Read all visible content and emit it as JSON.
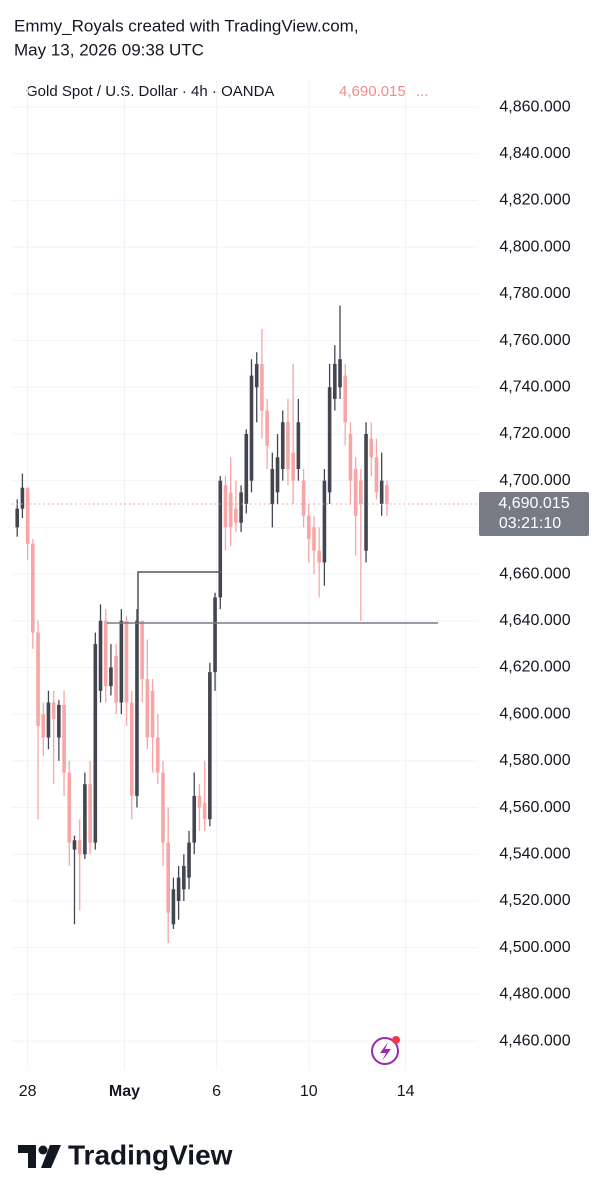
{
  "attribution": "Emmy_Royals created with TradingView.com,",
  "timestamp": "May 13, 2026 09:38 UTC",
  "brand": "TradingView",
  "chart_data": {
    "type": "candlestick",
    "title": "Gold Spot / U.S. Dollar · 4h · OANDA",
    "last_price": {
      "value": 4690.015,
      "label": "4,690.015"
    },
    "countdown": "03:21:10",
    "up_color": "#434651",
    "down_color": "#f7a5a5",
    "grid": true,
    "open": [
      4680,
      4688,
      4697,
      4673,
      4635,
      4600,
      4590,
      4605,
      4590,
      4604,
      4575,
      4542,
      4546,
      4540,
      4570,
      4545,
      4610,
      4640,
      4612,
      4625,
      4605,
      4640,
      4605,
      4565,
      4640,
      4615,
      4610,
      4590,
      4575,
      4545,
      4510,
      4520,
      4525,
      4530,
      4545,
      4565,
      4562,
      4555,
      4618,
      4650,
      4698,
      4695,
      4688,
      4682,
      4690,
      4700,
      4740,
      4750,
      4730,
      4690,
      4695,
      4705,
      4725,
      4712,
      4705,
      4700,
      4685,
      4680,
      4670,
      4665,
      4695,
      4735,
      4740,
      4745,
      4720,
      4705,
      4700,
      4670,
      4718,
      4710,
      4690,
      4698
    ],
    "high": [
      4692,
      4703,
      4697,
      4675,
      4640,
      4605,
      4610,
      4610,
      4606,
      4610,
      4580,
      4548,
      4555,
      4575,
      4580,
      4635,
      4647,
      4645,
      4630,
      4630,
      4645,
      4642,
      4610,
      4645,
      4640,
      4632,
      4615,
      4600,
      4580,
      4560,
      4530,
      4535,
      4540,
      4550,
      4575,
      4570,
      4580,
      4622,
      4652,
      4702,
      4702,
      4710,
      4700,
      4698,
      4722,
      4752,
      4755,
      4765,
      4735,
      4712,
      4720,
      4730,
      4735,
      4750,
      4735,
      4705,
      4690,
      4685,
      4680,
      4705,
      4750,
      4758,
      4775,
      4750,
      4725,
      4710,
      4705,
      4725,
      4725,
      4718,
      4712,
      4700
    ],
    "low": [
      4676,
      4684,
      4666,
      4628,
      4555,
      4582,
      4585,
      4570,
      4580,
      4565,
      4535,
      4510,
      4516,
      4538,
      4540,
      4542,
      4605,
      4605,
      4608,
      4600,
      4600,
      4595,
      4555,
      4560,
      4605,
      4585,
      4575,
      4570,
      4535,
      4502,
      4508,
      4512,
      4520,
      4525,
      4540,
      4550,
      4550,
      4552,
      4610,
      4645,
      4670,
      4672,
      4678,
      4678,
      4686,
      4695,
      4725,
      4718,
      4705,
      4680,
      4690,
      4700,
      4698,
      4690,
      4700,
      4680,
      4665,
      4660,
      4650,
      4655,
      4690,
      4730,
      4735,
      4715,
      4690,
      4668,
      4640,
      4665,
      4702,
      4692,
      4685,
      4685
    ],
    "close": [
      4688,
      4697,
      4673,
      4635,
      4595,
      4590,
      4605,
      4598,
      4604,
      4575,
      4545,
      4546,
      4540,
      4570,
      4545,
      4630,
      4640,
      4612,
      4620,
      4605,
      4640,
      4605,
      4565,
      4640,
      4615,
      4590,
      4590,
      4575,
      4545,
      4515,
      4525,
      4530,
      4535,
      4545,
      4565,
      4560,
      4555,
      4618,
      4650,
      4700,
      4680,
      4680,
      4682,
      4695,
      4720,
      4745,
      4750,
      4730,
      4715,
      4705,
      4710,
      4725,
      4705,
      4700,
      4725,
      4685,
      4675,
      4670,
      4665,
      4700,
      4740,
      4750,
      4752,
      4725,
      4700,
      4685,
      4690,
      4720,
      4710,
      4695,
      4700,
      4690.015
    ],
    "xlim": [
      -1,
      88.5
    ],
    "xticks": [
      {
        "value": 2,
        "label": "28"
      },
      {
        "value": 20.6,
        "label": "May"
      },
      {
        "value": 38.3,
        "label": "6"
      },
      {
        "value": 56,
        "label": "10"
      },
      {
        "value": 74.6,
        "label": "14"
      }
    ],
    "ylim": [
      4447.6,
      4871.6
    ],
    "yticks": [
      {
        "value": 4460,
        "label": "4,460.000"
      },
      {
        "value": 4480,
        "label": "4,480.000"
      },
      {
        "value": 4500,
        "label": "4,500.000"
      },
      {
        "value": 4520,
        "label": "4,520.000"
      },
      {
        "value": 4540,
        "label": "4,540.000"
      },
      {
        "value": 4560,
        "label": "4,560.000"
      },
      {
        "value": 4580,
        "label": "4,580.000"
      },
      {
        "value": 4600,
        "label": "4,600.000"
      },
      {
        "value": 4620,
        "label": "4,620.000"
      },
      {
        "value": 4640,
        "label": "4,640.000"
      },
      {
        "value": 4660,
        "label": "4,660.000"
      },
      {
        "value": 4680,
        "label": "4,680.000"
      },
      {
        "value": 4700,
        "label": "4,700.000"
      },
      {
        "value": 4720,
        "label": "4,720.000"
      },
      {
        "value": 4740,
        "label": "4,740.000"
      },
      {
        "value": 4760,
        "label": "4,760.000"
      },
      {
        "value": 4780,
        "label": "4,780.000"
      },
      {
        "value": 4800,
        "label": "4,800.000"
      },
      {
        "value": 4820,
        "label": "4,820.000"
      },
      {
        "value": 4840,
        "label": "4,840.000"
      },
      {
        "value": 4860,
        "label": "4,860.000"
      }
    ]
  }
}
